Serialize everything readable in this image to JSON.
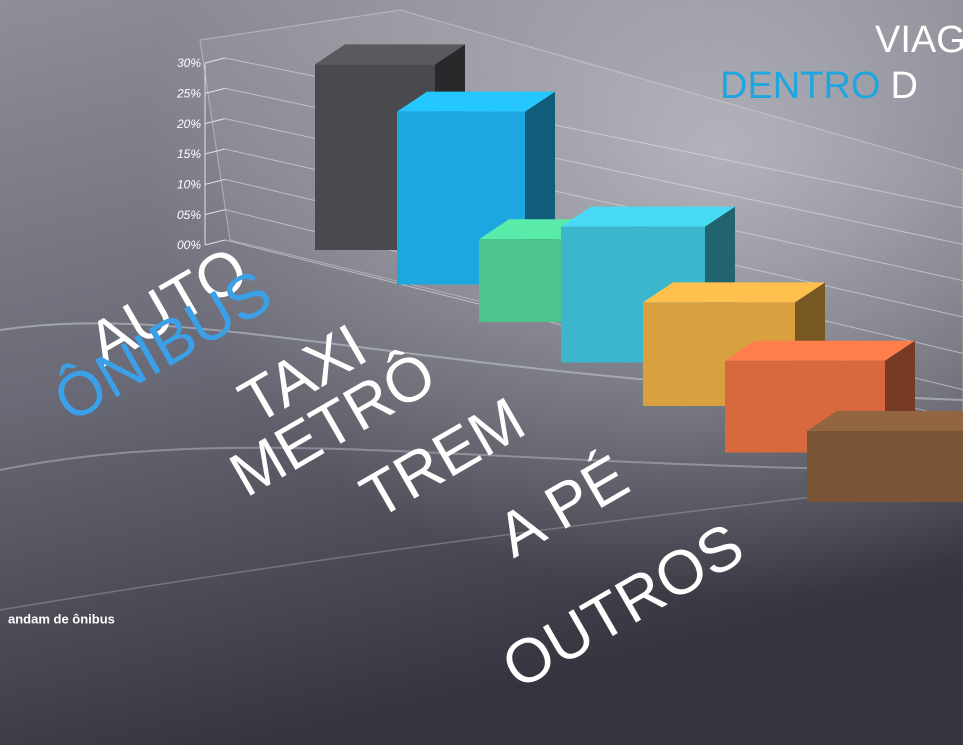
{
  "chart_data": {
    "type": "bar",
    "title": "VIAG",
    "subtitle_parts": [
      "DENTRO",
      "D"
    ],
    "annotation": "andam de ônibus",
    "categories": [
      "AUTO",
      "ÔNIBUS",
      "TAXI",
      "METRÔ",
      "TREM",
      "A PÉ",
      "OUTROS"
    ],
    "values": [
      29,
      26,
      12,
      19,
      14,
      12,
      9
    ],
    "colors": [
      "#4a4a4e",
      "#1ea6e0",
      "#4cc48c",
      "#3cb6cc",
      "#d9a040",
      "#d8693f",
      "#7a5535"
    ],
    "highlight_color": "#3aa0e8",
    "ylim": [
      0,
      30
    ],
    "yticks": [
      {
        "value": 0,
        "label": "00%"
      },
      {
        "value": 5,
        "label": "05%"
      },
      {
        "value": 10,
        "label": "10%"
      },
      {
        "value": 15,
        "label": "15%"
      },
      {
        "value": 20,
        "label": "20%"
      },
      {
        "value": 25,
        "label": "25%"
      },
      {
        "value": 30,
        "label": "30%"
      }
    ],
    "grid": true
  }
}
